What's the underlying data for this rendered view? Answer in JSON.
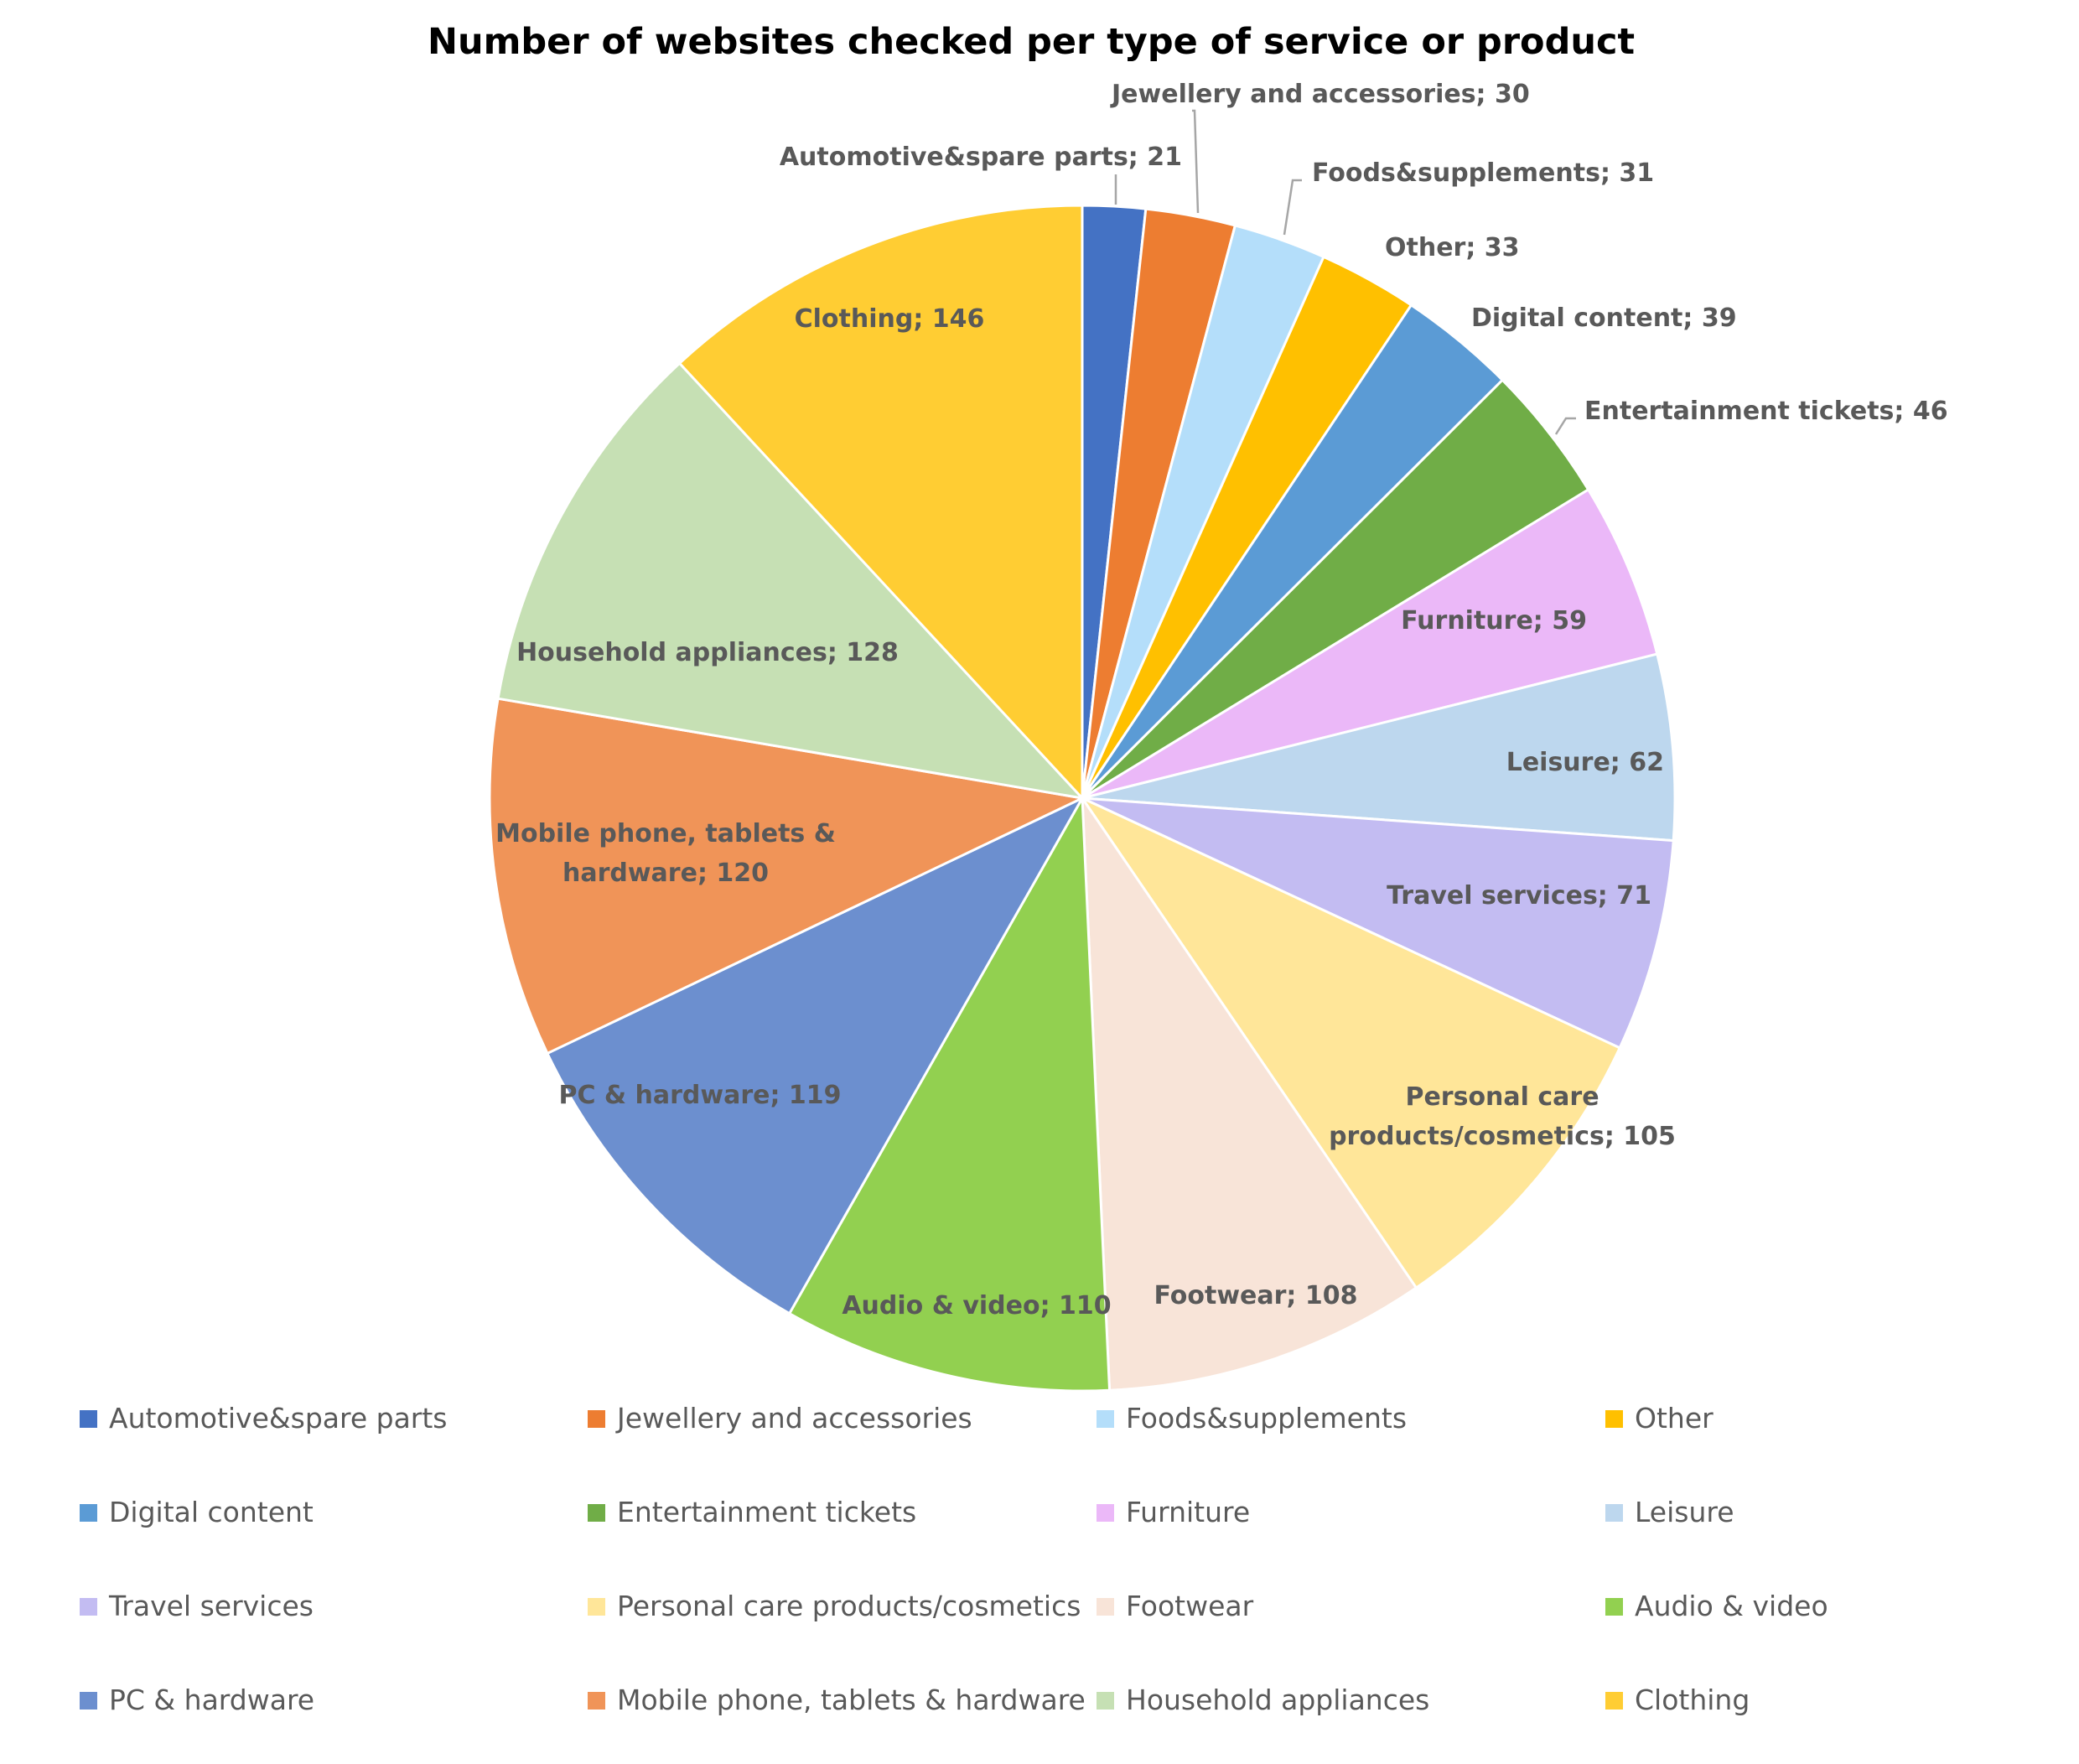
{
  "chart_data": {
    "type": "pie",
    "title": "Number of websites checked per type of service or product",
    "legend_position": "bottom",
    "slices": [
      {
        "label": "Automotive&spare parts",
        "value": 21,
        "color": "#4472C4",
        "data_label": "Automotive&spare parts; 21"
      },
      {
        "label": "Jewellery and accessories",
        "value": 30,
        "color": "#ED7D31",
        "data_label": "Jewellery and accessories; 30"
      },
      {
        "label": "Foods&supplements",
        "value": 31,
        "color": "#B4DEFA",
        "data_label": "Foods&supplements; 31"
      },
      {
        "label": "Other",
        "value": 33,
        "color": "#FFC000",
        "data_label": "Other; 33"
      },
      {
        "label": "Digital content",
        "value": 39,
        "color": "#5B9BD5",
        "data_label": "Digital content; 39"
      },
      {
        "label": "Entertainment tickets",
        "value": 46,
        "color": "#70AD47",
        "data_label": "Entertainment tickets; 46"
      },
      {
        "label": "Furniture",
        "value": 59,
        "color": "#EBB8F8",
        "data_label": "Furniture; 59"
      },
      {
        "label": "Leisure",
        "value": 62,
        "color": "#BDD7EE",
        "data_label": "Leisure; 62"
      },
      {
        "label": "Travel services",
        "value": 71,
        "color": "#C3BCF2",
        "data_label": "Travel services; 71"
      },
      {
        "label": "Personal care products/cosmetics",
        "value": 105,
        "color": "#FFE699",
        "data_label": "Personal care products/cosmetics; 105"
      },
      {
        "label": "Footwear",
        "value": 108,
        "color": "#F8E4D8",
        "data_label": "Footwear; 108"
      },
      {
        "label": "Audio & video",
        "value": 110,
        "color": "#92D050",
        "data_label": "Audio & video; 110"
      },
      {
        "label": "PC & hardware",
        "value": 119,
        "color": "#6C8FCF",
        "data_label": "PC & hardware; 119"
      },
      {
        "label": "Mobile phone, tablets & hardware",
        "value": 120,
        "color": "#F09458",
        "data_label": "Mobile phone, tablets & hardware; 120"
      },
      {
        "label": "Household appliances",
        "value": 128,
        "color": "#C6E0B4",
        "data_label": "Household appliances; 128"
      },
      {
        "label": "Clothing",
        "value": 146,
        "color": "#FFCD33",
        "data_label": "Clothing; 146"
      }
    ]
  }
}
